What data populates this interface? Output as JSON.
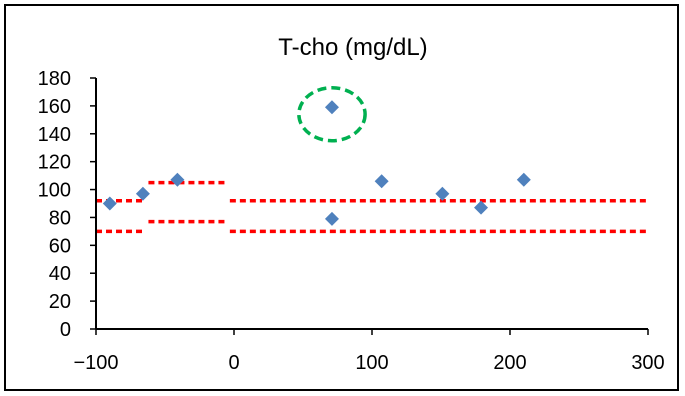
{
  "chart_data": {
    "type": "scatter",
    "title": "T-cho (mg/dL)",
    "xlabel": "",
    "ylabel": "",
    "xlim": [
      -100,
      300
    ],
    "ylim": [
      0,
      180
    ],
    "x_ticks": [
      -100,
      0,
      100,
      200,
      300
    ],
    "y_ticks": [
      0,
      20,
      40,
      60,
      80,
      100,
      120,
      140,
      160,
      180
    ],
    "x_tick_labels": [
      "−100",
      "0",
      "100",
      "200",
      "300"
    ],
    "y_tick_labels": [
      "0",
      "20",
      "40",
      "60",
      "80",
      "100",
      "120",
      "140",
      "160",
      "180"
    ],
    "grid": false,
    "legend": "none",
    "series": [
      {
        "marker": "diamond",
        "color": "#4F81BD",
        "points": [
          {
            "x": -90,
            "y": 90
          },
          {
            "x": -66,
            "y": 97
          },
          {
            "x": -41,
            "y": 107
          },
          {
            "x": 71,
            "y": 79
          },
          {
            "x": 71,
            "y": 159
          },
          {
            "x": 107,
            "y": 106
          },
          {
            "x": 151,
            "y": 97
          },
          {
            "x": 179,
            "y": 87
          },
          {
            "x": 210,
            "y": 107
          }
        ]
      }
    ],
    "reference_lines": {
      "color": "#FF0000",
      "style": "dotted",
      "segments": [
        {
          "x": [
            -100,
            -66
          ],
          "y": 92
        },
        {
          "x": [
            -100,
            -66
          ],
          "y": 70
        },
        {
          "x": [
            -62,
            -5
          ],
          "y": 105
        },
        {
          "x": [
            -62,
            -5
          ],
          "y": 77
        },
        {
          "x": [
            -3,
            300
          ],
          "y": 92
        },
        {
          "x": [
            -3,
            300
          ],
          "y": 70
        }
      ]
    },
    "highlight": {
      "x": 71,
      "y": 154,
      "rx": 24,
      "ry": 19,
      "color": "#00B050",
      "style": "dashed"
    }
  }
}
